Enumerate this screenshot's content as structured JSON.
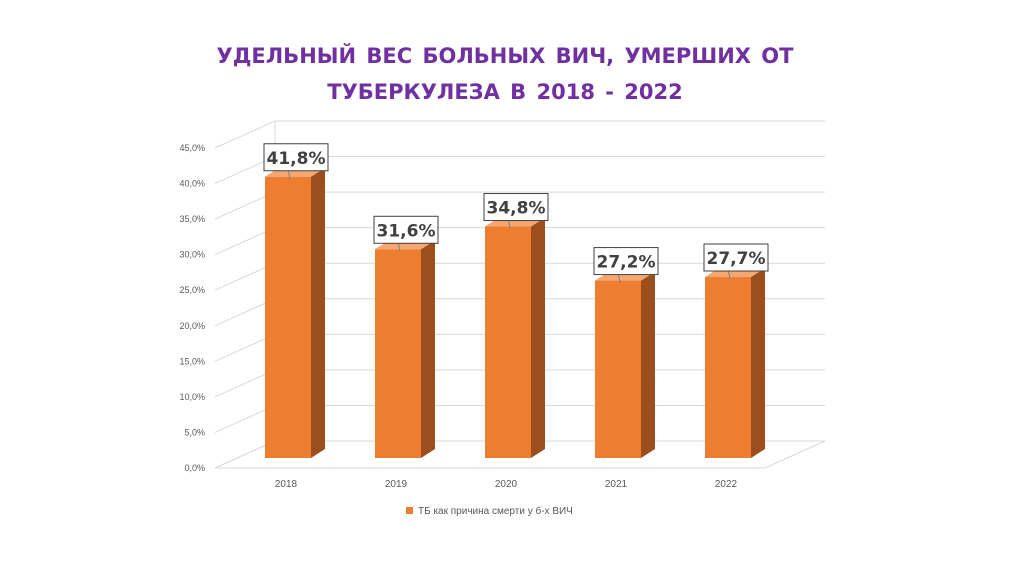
{
  "title_line1": "УДЕЛЬНЫЙ ВЕС БОЛЬНЫХ ВИЧ, УМЕРШИХ ОТ",
  "title_line2": "ТУБЕРКУЛЕЗА В 2018 - 2022",
  "chart_data": {
    "type": "bar",
    "title": "УДЕЛЬНЫЙ ВЕС БОЛЬНЫХ ВИЧ, УМЕРШИХ ОТ ТУБЕРКУЛЕЗА В 2018 - 2022",
    "categories": [
      "2018",
      "2019",
      "2020",
      "2021",
      "2022"
    ],
    "series": [
      {
        "name": "ТБ как причина смерти у б-х ВИЧ",
        "values": [
          41.8,
          31.6,
          34.8,
          27.2,
          27.7
        ],
        "data_labels": [
          "41,8%",
          "31,6%",
          "34,8%",
          "27,2%",
          "27,7%"
        ],
        "color": "#ed7d31",
        "side_color": "#9c4f1c"
      }
    ],
    "ylim": [
      0,
      45
    ],
    "yticks": [
      0,
      5,
      10,
      15,
      20,
      25,
      30,
      35,
      40,
      45
    ],
    "ytick_labels": [
      "0,0%",
      "5,0%",
      "10,0%",
      "15,0%",
      "20,0%",
      "25,0%",
      "30,0%",
      "35,0%",
      "40,0%",
      "45,0%"
    ],
    "xlabel": "",
    "ylabel": "",
    "grid": true,
    "legend_position": "bottom",
    "style": "3d-column"
  }
}
